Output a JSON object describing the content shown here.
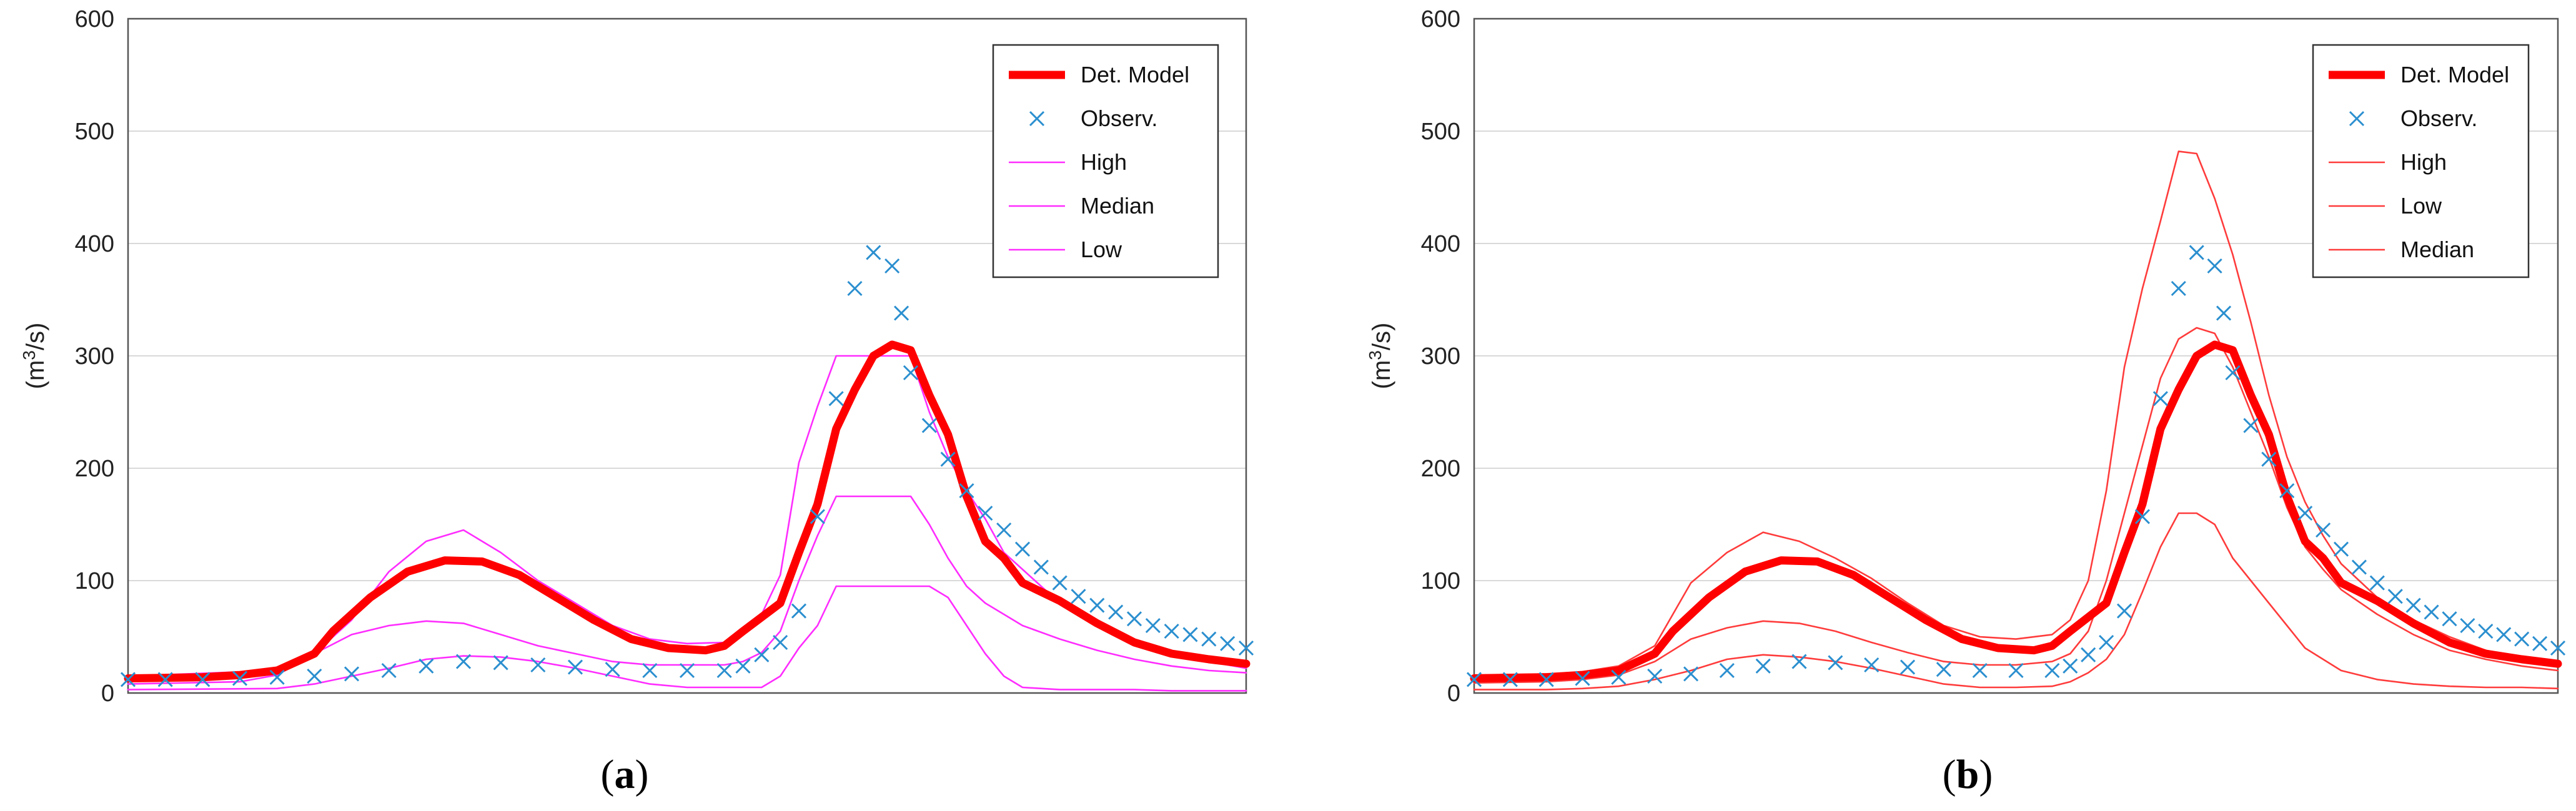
{
  "chart_data": [
    {
      "type": "line",
      "panel_label": "a",
      "title": "",
      "xlabel": "",
      "ylabel": "(m³/s)",
      "ylabel_base": "(m",
      "ylabel_sup": "3",
      "ylabel_tail": "/s)",
      "ylim": [
        0,
        600
      ],
      "yticks": [
        0,
        100,
        200,
        300,
        400,
        500,
        600
      ],
      "xlim": [
        0,
        120
      ],
      "grid": true,
      "legend_position": "top-right",
      "legend": [
        "Det. Model",
        "Observ.",
        "High",
        "Median",
        "Low"
      ],
      "colors": {
        "det_model": "#ff0000",
        "observ": "#2b8fcf",
        "band": "#ff2cff"
      },
      "series": [
        {
          "name": "Det. Model",
          "style": "line",
          "x": [
            0,
            8,
            12,
            16,
            20,
            22,
            26,
            30,
            34,
            38,
            42,
            46,
            50,
            54,
            58,
            62,
            64,
            66,
            70,
            72,
            74,
            76,
            78,
            80,
            82,
            84,
            86,
            88,
            90,
            92,
            94,
            96,
            100,
            104,
            108,
            112,
            116,
            120
          ],
          "values": [
            13,
            14,
            16,
            20,
            35,
            55,
            85,
            108,
            118,
            117,
            105,
            85,
            65,
            48,
            40,
            38,
            42,
            55,
            80,
            125,
            168,
            235,
            270,
            300,
            310,
            305,
            265,
            230,
            175,
            135,
            120,
            98,
            82,
            62,
            45,
            35,
            30,
            26
          ]
        },
        {
          "name": "Observ.",
          "style": "marker",
          "x": [
            0,
            4,
            8,
            12,
            16,
            20,
            24,
            28,
            32,
            36,
            40,
            44,
            48,
            52,
            56,
            60,
            64,
            66,
            68,
            70,
            72,
            74,
            76,
            78,
            80,
            82,
            83,
            84,
            86,
            88,
            90,
            92,
            94,
            96,
            98,
            100,
            102,
            104,
            106,
            108,
            110,
            112,
            114,
            116,
            118,
            120
          ],
          "values": [
            12,
            12,
            12,
            13,
            14,
            15,
            17,
            20,
            24,
            28,
            27,
            25,
            23,
            21,
            20,
            20,
            20,
            24,
            34,
            45,
            73,
            157,
            262,
            360,
            392,
            380,
            338,
            285,
            238,
            208,
            180,
            160,
            145,
            128,
            112,
            98,
            86,
            78,
            72,
            66,
            60,
            55,
            52,
            48,
            44,
            40
          ]
        },
        {
          "name": "High",
          "style": "line",
          "x": [
            0,
            16,
            20,
            24,
            28,
            32,
            36,
            40,
            44,
            48,
            52,
            56,
            60,
            64,
            66,
            68,
            70,
            72,
            74,
            76,
            78,
            80,
            82,
            84,
            86,
            88,
            90,
            92,
            94,
            96,
            98,
            100,
            104,
            108,
            112,
            116,
            120
          ],
          "values": [
            15,
            20,
            35,
            65,
            108,
            135,
            145,
            125,
            100,
            80,
            60,
            48,
            44,
            45,
            55,
            70,
            105,
            205,
            255,
            300,
            300,
            300,
            300,
            300,
            250,
            210,
            180,
            155,
            125,
            110,
            95,
            80,
            60,
            45,
            35,
            28,
            22
          ]
        },
        {
          "name": "Median",
          "style": "line",
          "x": [
            0,
            12,
            16,
            20,
            24,
            28,
            32,
            36,
            40,
            44,
            48,
            52,
            56,
            60,
            64,
            66,
            68,
            70,
            72,
            74,
            76,
            78,
            80,
            82,
            84,
            86,
            88,
            90,
            92,
            94,
            96,
            100,
            104,
            108,
            112,
            116,
            120
          ],
          "values": [
            8,
            10,
            16,
            35,
            52,
            60,
            64,
            62,
            52,
            42,
            35,
            28,
            25,
            25,
            25,
            28,
            36,
            55,
            100,
            140,
            175,
            175,
            175,
            175,
            175,
            150,
            120,
            95,
            80,
            70,
            60,
            48,
            38,
            30,
            24,
            20,
            18
          ]
        },
        {
          "name": "Low",
          "style": "line",
          "x": [
            0,
            16,
            20,
            24,
            28,
            32,
            36,
            40,
            44,
            48,
            52,
            56,
            60,
            64,
            68,
            70,
            72,
            74,
            76,
            78,
            80,
            82,
            84,
            86,
            88,
            90,
            92,
            94,
            96,
            100,
            104,
            108,
            112,
            116,
            120
          ],
          "values": [
            3,
            4,
            8,
            15,
            22,
            30,
            33,
            32,
            28,
            22,
            15,
            8,
            5,
            5,
            5,
            15,
            40,
            60,
            95,
            95,
            95,
            95,
            95,
            95,
            85,
            60,
            35,
            15,
            5,
            3,
            3,
            3,
            2,
            2,
            2
          ]
        }
      ]
    },
    {
      "type": "line",
      "panel_label": "b",
      "title": "",
      "xlabel": "",
      "ylabel": "(m³/s)",
      "ylabel_base": "(m",
      "ylabel_sup": "3",
      "ylabel_tail": "/s)",
      "ylim": [
        0,
        600
      ],
      "yticks": [
        0,
        100,
        200,
        300,
        400,
        500,
        600
      ],
      "xlim": [
        0,
        120
      ],
      "grid": true,
      "legend_position": "top-right",
      "legend": [
        "Det. Model",
        "Observ.",
        "High",
        "Low",
        "Median"
      ],
      "colors": {
        "det_model": "#ff0000",
        "observ": "#2b8fcf",
        "band": "#ff3b3b"
      },
      "series": [
        {
          "name": "Det. Model",
          "style": "line",
          "x": [
            0,
            8,
            12,
            16,
            20,
            22,
            26,
            30,
            34,
            38,
            42,
            46,
            50,
            54,
            58,
            62,
            64,
            66,
            70,
            72,
            74,
            76,
            78,
            80,
            82,
            84,
            86,
            88,
            90,
            92,
            94,
            96,
            100,
            104,
            108,
            112,
            116,
            120
          ],
          "values": [
            13,
            14,
            16,
            20,
            35,
            55,
            85,
            108,
            118,
            117,
            105,
            85,
            65,
            48,
            40,
            38,
            42,
            55,
            80,
            125,
            168,
            235,
            270,
            300,
            310,
            305,
            265,
            230,
            175,
            135,
            120,
            98,
            82,
            62,
            45,
            35,
            30,
            26
          ]
        },
        {
          "name": "Observ.",
          "style": "marker",
          "x": [
            0,
            4,
            8,
            12,
            16,
            20,
            24,
            28,
            32,
            36,
            40,
            44,
            48,
            52,
            56,
            60,
            64,
            66,
            68,
            70,
            72,
            74,
            76,
            78,
            80,
            82,
            83,
            84,
            86,
            88,
            90,
            92,
            94,
            96,
            98,
            100,
            102,
            104,
            106,
            108,
            110,
            112,
            114,
            116,
            118,
            120
          ],
          "values": [
            12,
            12,
            12,
            13,
            14,
            15,
            17,
            20,
            24,
            28,
            27,
            25,
            23,
            21,
            20,
            20,
            20,
            24,
            34,
            45,
            73,
            157,
            262,
            360,
            392,
            380,
            338,
            285,
            238,
            208,
            180,
            160,
            145,
            128,
            112,
            98,
            86,
            78,
            72,
            66,
            60,
            55,
            52,
            48,
            44,
            40
          ]
        },
        {
          "name": "High",
          "style": "line",
          "x": [
            0,
            8,
            12,
            16,
            20,
            24,
            28,
            32,
            36,
            40,
            44,
            48,
            52,
            56,
            60,
            64,
            66,
            68,
            70,
            72,
            74,
            76,
            78,
            80,
            82,
            84,
            86,
            88,
            90,
            92,
            94,
            96,
            98,
            100,
            104,
            108,
            112,
            116,
            120
          ],
          "values": [
            16,
            17,
            19,
            24,
            42,
            98,
            125,
            143,
            135,
            120,
            102,
            80,
            60,
            50,
            48,
            52,
            65,
            100,
            180,
            290,
            360,
            420,
            482,
            480,
            440,
            390,
            330,
            265,
            210,
            170,
            140,
            115,
            100,
            85,
            65,
            50,
            38,
            32,
            28
          ]
        },
        {
          "name": "Low",
          "style": "line",
          "x": [
            0,
            8,
            12,
            16,
            20,
            24,
            28,
            32,
            36,
            40,
            44,
            48,
            52,
            56,
            60,
            64,
            66,
            68,
            70,
            72,
            74,
            76,
            78,
            80,
            82,
            84,
            86,
            88,
            90,
            92,
            94,
            96,
            100,
            104,
            108,
            112,
            116,
            120
          ],
          "values": [
            3,
            3,
            4,
            6,
            12,
            20,
            30,
            34,
            32,
            28,
            22,
            15,
            8,
            5,
            5,
            6,
            10,
            18,
            30,
            52,
            90,
            130,
            160,
            160,
            150,
            120,
            100,
            80,
            60,
            40,
            30,
            20,
            12,
            8,
            6,
            5,
            5,
            4
          ]
        },
        {
          "name": "Median",
          "style": "line",
          "x": [
            0,
            8,
            12,
            16,
            20,
            24,
            28,
            32,
            36,
            40,
            44,
            48,
            52,
            56,
            60,
            64,
            66,
            68,
            70,
            72,
            74,
            76,
            78,
            80,
            82,
            84,
            86,
            88,
            90,
            92,
            94,
            96,
            100,
            104,
            108,
            112,
            116,
            120
          ],
          "values": [
            9,
            10,
            12,
            16,
            28,
            48,
            58,
            64,
            62,
            55,
            45,
            36,
            28,
            25,
            25,
            28,
            35,
            55,
            100,
            160,
            220,
            280,
            315,
            325,
            320,
            290,
            250,
            210,
            165,
            130,
            110,
            92,
            70,
            52,
            38,
            30,
            24,
            20
          ]
        }
      ]
    }
  ]
}
